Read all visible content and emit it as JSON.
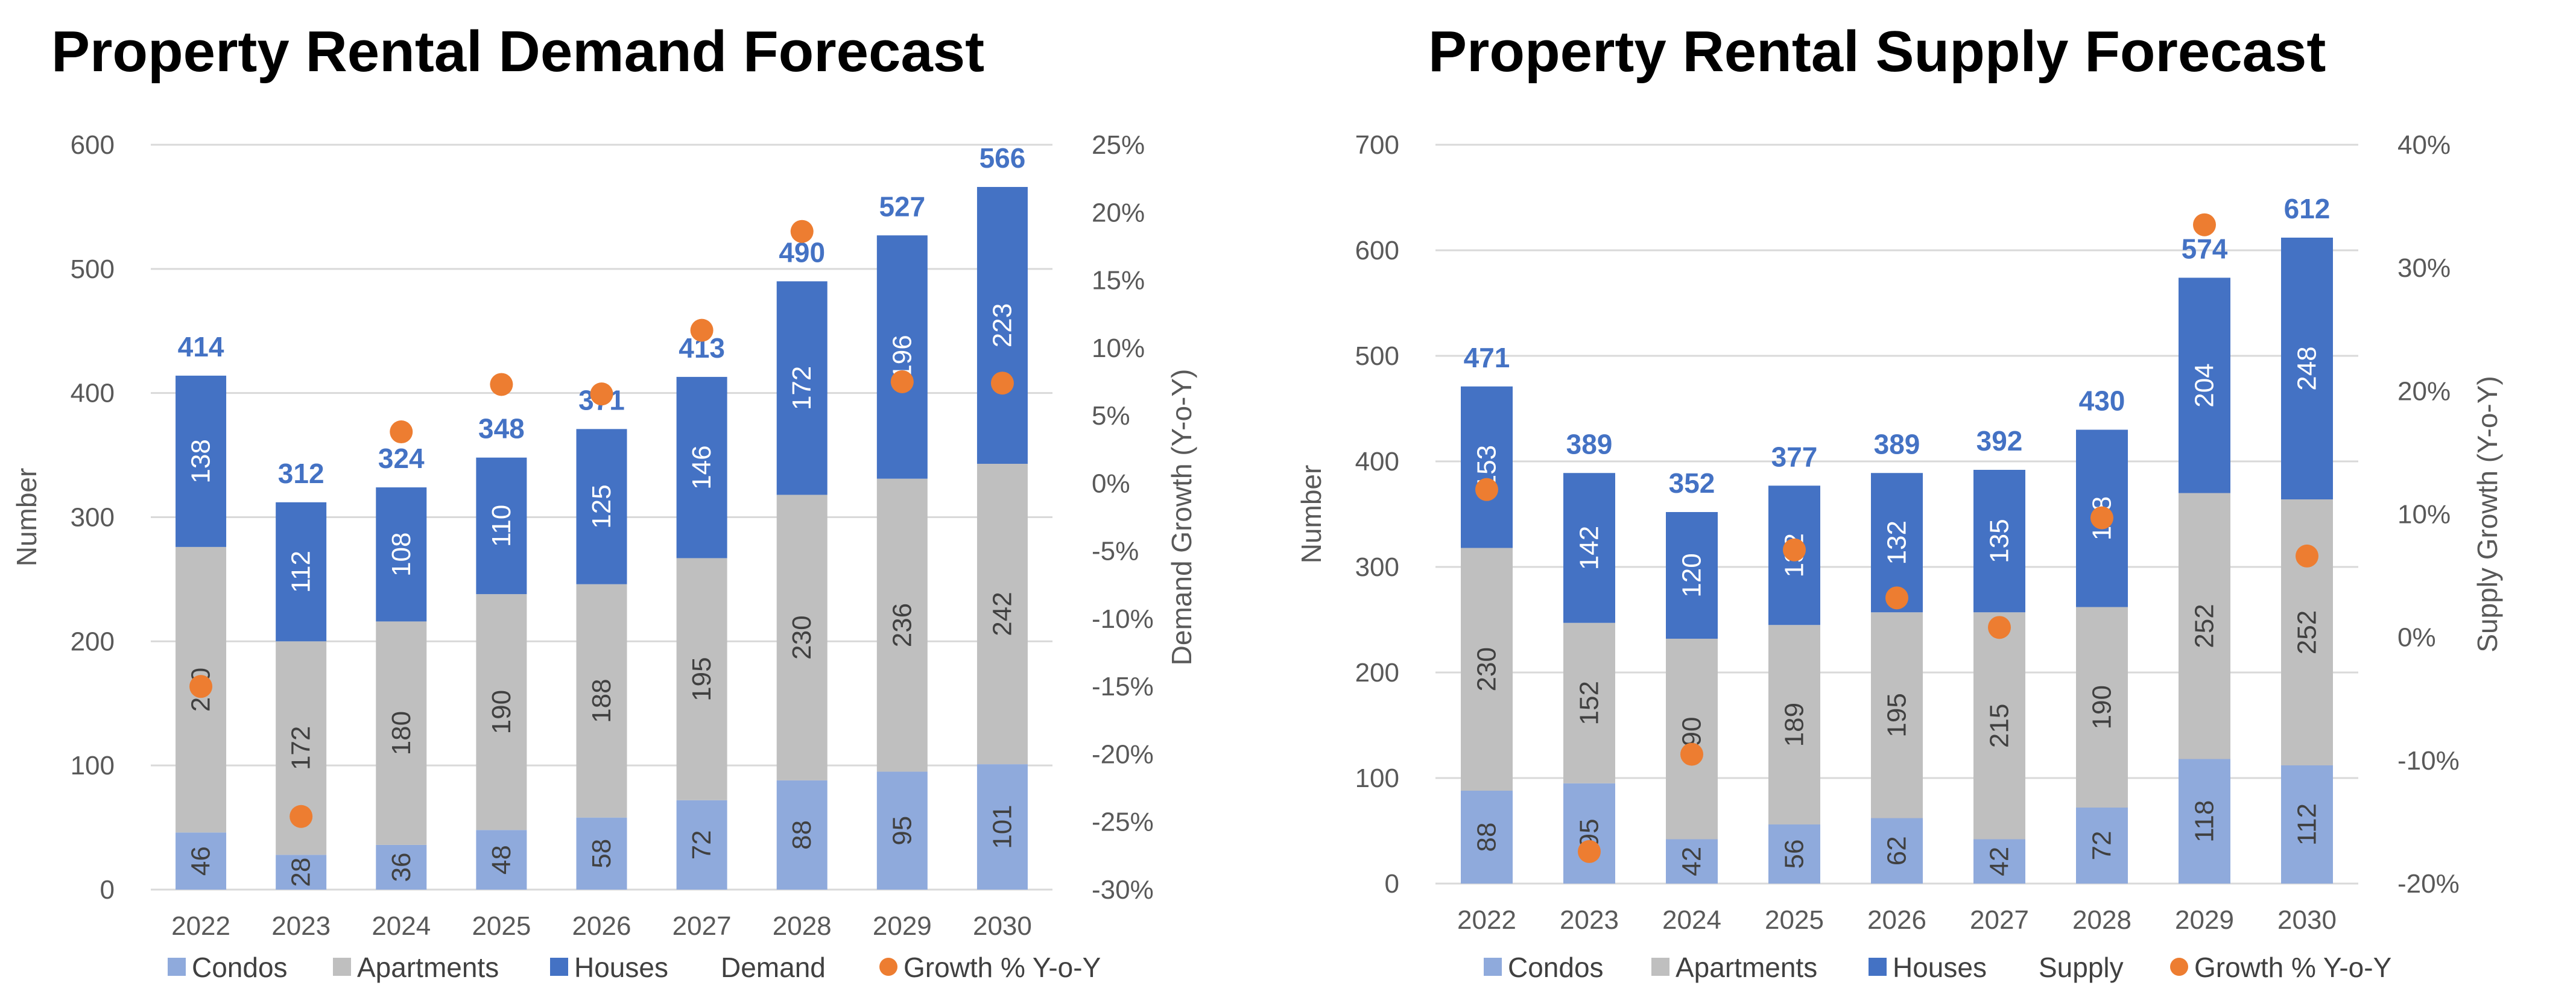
{
  "chart_data": [
    {
      "type": "bar",
      "stacked": true,
      "title": "Property Rental Demand Forecast",
      "categories": [
        "2022",
        "2023",
        "2024",
        "2025",
        "2026",
        "2027",
        "2028",
        "2029",
        "2030"
      ],
      "series": [
        {
          "name": "Condos",
          "color": "#8FAADC",
          "values": [
            46,
            28,
            36,
            48,
            58,
            72,
            88,
            95,
            101
          ]
        },
        {
          "name": "Apartments",
          "color": "#BFBFBF",
          "values": [
            230,
            172,
            180,
            190,
            188,
            195,
            230,
            236,
            242
          ]
        },
        {
          "name": "Houses",
          "color": "#4472C4",
          "values": [
            138,
            112,
            108,
            110,
            125,
            146,
            172,
            196,
            223
          ]
        }
      ],
      "total_series": {
        "name": "Demand",
        "values": [
          414,
          312,
          324,
          348,
          371,
          413,
          490,
          527,
          566
        ]
      },
      "growth_series": {
        "name": "Growth % Y-o-Y",
        "color": "#ED7D31",
        "values": [
          -15.0,
          -24.6,
          3.8,
          7.3,
          6.6,
          11.3,
          18.6,
          7.5,
          7.4
        ]
      },
      "ylabel": "Number",
      "y2label": "Demand Growth (Y-o-Y)",
      "ylim": [
        0,
        600
      ],
      "yticks": [
        0,
        100,
        200,
        300,
        400,
        500,
        600
      ],
      "y2lim": [
        -30,
        25
      ],
      "y2ticks": [
        "-30%",
        "-25%",
        "-20%",
        "-15%",
        "-10%",
        "-5%",
        "0%",
        "5%",
        "10%",
        "15%",
        "20%",
        "25%"
      ],
      "legend": [
        "Condos",
        "Apartments",
        "Houses",
        "Demand",
        "Growth % Y-o-Y"
      ],
      "legend_position": "bottom",
      "grid": true
    },
    {
      "type": "bar",
      "stacked": true,
      "title": "Property Rental Supply Forecast",
      "categories": [
        "2022",
        "2023",
        "2024",
        "2025",
        "2026",
        "2027",
        "2028",
        "2029",
        "2030"
      ],
      "series": [
        {
          "name": "Condos",
          "color": "#8FAADC",
          "values": [
            88,
            95,
            42,
            56,
            62,
            42,
            72,
            118,
            112
          ]
        },
        {
          "name": "Apartments",
          "color": "#BFBFBF",
          "values": [
            230,
            152,
            190,
            189,
            195,
            215,
            190,
            252,
            252
          ]
        },
        {
          "name": "Houses",
          "color": "#4472C4",
          "values": [
            153,
            142,
            120,
            132,
            132,
            135,
            168,
            204,
            248
          ]
        }
      ],
      "total_series": {
        "name": "Supply",
        "values": [
          471,
          389,
          352,
          377,
          389,
          392,
          430,
          574,
          612
        ]
      },
      "growth_series": {
        "name": "Growth % Y-o-Y",
        "color": "#ED7D31",
        "values": [
          12.0,
          -17.4,
          -9.5,
          7.1,
          3.2,
          0.8,
          9.7,
          33.5,
          6.6
        ]
      },
      "ylabel": "Number",
      "y2label": "Supply Growth (Y-o-Y)",
      "ylim": [
        0,
        700
      ],
      "yticks": [
        0,
        100,
        200,
        300,
        400,
        500,
        600,
        700
      ],
      "y2lim": [
        -20,
        40
      ],
      "y2ticks": [
        "-20%",
        "-10%",
        "0%",
        "10%",
        "20%",
        "30%",
        "40%"
      ],
      "legend": [
        "Condos",
        "Apartments",
        "Houses",
        "Supply",
        "Growth % Y-o-Y"
      ],
      "legend_position": "bottom",
      "grid": true
    }
  ]
}
